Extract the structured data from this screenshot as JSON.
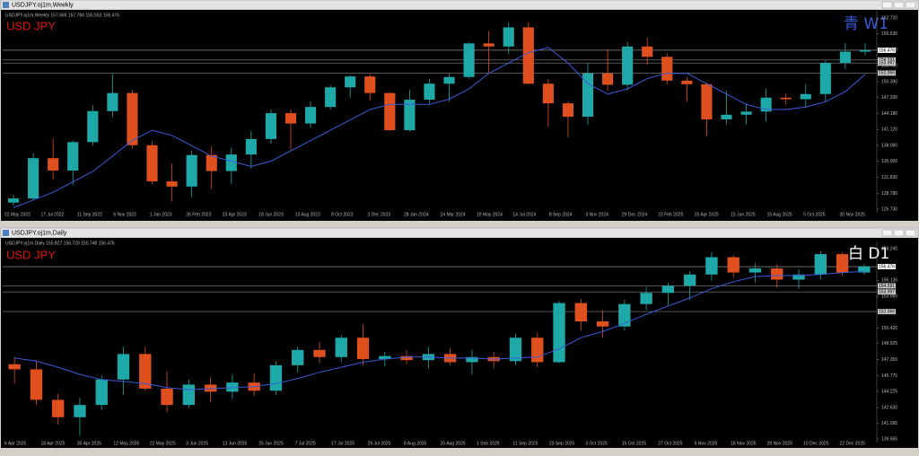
{
  "chart_data": [
    {
      "type": "candlestick",
      "window_title": "USDJPY.oj1m,Weekly",
      "info": "USDJPY.oj1m,Weekly  157.666 157.784 155.553 156.476",
      "symbol_label": "USD JPY",
      "timeframe_label": "青 W1",
      "timeframe_color": "#3a5bd9",
      "up_color": "#1fa8a8",
      "down_color": "#e0501e",
      "ma_color": "#3a5bd9",
      "x_tick_labels": [
        "22 May 2022",
        "17 Jul 2022",
        "11 Sep 2022",
        "6 Nov 2022",
        "1 Jan 2023",
        "26 Feb 2023",
        "23 Apr 2023",
        "18 Jun 2023",
        "13 Aug 2023",
        "8 Oct 2023",
        "3 Dec 2023",
        "28 Jan 2024",
        "24 Mar 2024",
        "19 May 2024",
        "14 Jul 2024",
        "8 Sep 2024",
        "3 Nov 2024",
        "29 Dec 2024",
        "23 Feb 2025",
        "20 Apr 2025",
        "15 Jun 2025",
        "10 Aug 2025",
        "5 Oct 2025",
        "30 Nov 2025"
      ],
      "ylim": [
        125.73,
        162.72
      ],
      "yticks": [
        {
          "value": 162.72,
          "label": "162.720"
        },
        {
          "value": 159.63,
          "label": "159.630"
        },
        {
          "value": 156.53,
          "label": "156.530"
        },
        {
          "value": 153.45,
          "label": "153.450"
        },
        {
          "value": 150.39,
          "label": "150.390"
        },
        {
          "value": 147.33,
          "label": "147.330"
        },
        {
          "value": 144.18,
          "label": "144.180"
        },
        {
          "value": 141.12,
          "label": "141.120"
        },
        {
          "value": 138.06,
          "label": "138.060"
        },
        {
          "value": 135.0,
          "label": "135.000"
        },
        {
          "value": 131.83,
          "label": "131.830"
        },
        {
          "value": 128.78,
          "label": "128.780"
        },
        {
          "value": 125.73,
          "label": "125.730"
        }
      ],
      "levels": [
        156.476,
        154.591,
        153.997,
        152.066
      ],
      "candles": [
        [
          127.0,
          128.5,
          126.4,
          127.8
        ],
        [
          127.8,
          136.5,
          127.5,
          135.6
        ],
        [
          135.6,
          139.3,
          131.5,
          133.2
        ],
        [
          133.2,
          139.0,
          130.4,
          138.7
        ],
        [
          138.7,
          145.9,
          138.0,
          144.7
        ],
        [
          144.7,
          151.9,
          143.5,
          148.2
        ],
        [
          148.2,
          148.8,
          137.5,
          138.1
        ],
        [
          138.1,
          138.9,
          130.6,
          131.1
        ],
        [
          131.1,
          134.5,
          127.2,
          130.1
        ],
        [
          130.1,
          137.1,
          128.1,
          136.2
        ],
        [
          136.2,
          137.9,
          129.6,
          133.1
        ],
        [
          133.1,
          137.6,
          130.6,
          136.3
        ],
        [
          136.3,
          140.9,
          133.5,
          139.3
        ],
        [
          139.3,
          145.0,
          138.4,
          144.3
        ],
        [
          144.3,
          145.0,
          137.2,
          142.3
        ],
        [
          142.3,
          146.6,
          141.5,
          145.5
        ],
        [
          145.5,
          149.7,
          145.0,
          149.3
        ],
        [
          149.3,
          151.7,
          147.3,
          151.4
        ],
        [
          151.4,
          151.9,
          146.7,
          148.2
        ],
        [
          148.2,
          148.3,
          140.9,
          141.0
        ],
        [
          141.0,
          148.8,
          140.8,
          146.9
        ],
        [
          146.9,
          150.9,
          146.1,
          150.0
        ],
        [
          150.0,
          151.9,
          146.5,
          151.3
        ],
        [
          151.3,
          158.0,
          151.0,
          157.8
        ],
        [
          157.8,
          160.2,
          151.9,
          157.2
        ],
        [
          157.2,
          161.9,
          155.7,
          160.9
        ],
        [
          160.9,
          161.9,
          149.9,
          150.0
        ],
        [
          150.0,
          150.9,
          141.7,
          146.2
        ],
        [
          146.2,
          146.5,
          139.6,
          143.6
        ],
        [
          143.6,
          153.9,
          142.0,
          152.0
        ],
        [
          152.0,
          156.7,
          148.6,
          149.8
        ],
        [
          149.8,
          158.1,
          148.7,
          157.2
        ],
        [
          157.2,
          158.9,
          153.7,
          155.2
        ],
        [
          155.2,
          155.9,
          149.9,
          150.6
        ],
        [
          150.6,
          151.3,
          146.5,
          149.9
        ],
        [
          149.9,
          150.2,
          139.9,
          143.1
        ],
        [
          143.1,
          148.6,
          142.1,
          144.0
        ],
        [
          144.0,
          146.2,
          142.1,
          144.6
        ],
        [
          144.6,
          149.0,
          142.7,
          147.3
        ],
        [
          147.3,
          148.2,
          145.9,
          147.0
        ],
        [
          147.0,
          149.9,
          145.4,
          148.0
        ],
        [
          148.0,
          154.5,
          146.6,
          154.0
        ],
        [
          154.0,
          157.9,
          152.8,
          156.2
        ],
        [
          156.2,
          157.8,
          155.5,
          156.5
        ]
      ],
      "ma": [
        126.0,
        127.5,
        129.0,
        131.0,
        133.0,
        136.0,
        139.0,
        141.0,
        140.0,
        138.0,
        136.0,
        135.0,
        134.0,
        135.0,
        137.0,
        139.0,
        141.0,
        143.0,
        145.0,
        146.0,
        146.0,
        146.0,
        147.0,
        149.0,
        152.0,
        154.0,
        156.0,
        157.0,
        154.0,
        150.0,
        148.0,
        149.0,
        151.0,
        152.0,
        152.0,
        150.0,
        148.0,
        146.0,
        145.0,
        145.0,
        145.5,
        146.5,
        148.5,
        151.8
      ]
    },
    {
      "type": "candlestick",
      "window_title": "USDJPY.oj1m,Daily",
      "info": "USDJPY.oj1m,Daily  155.827 156.729 155.748 156.476",
      "symbol_label": "USD JPY",
      "timeframe_label": "白 D1",
      "timeframe_color": "#ffffff",
      "up_color": "#1fa8a8",
      "down_color": "#e0501e",
      "ma_color": "#3a5bd9",
      "x_tick_labels": [
        "6 Apr 2025",
        "18 Apr 2025",
        "30 Apr 2025",
        "12 May 2025",
        "22 May 2025",
        "3 Jun 2025",
        "13 Jun 2025",
        "25 Jun 2025",
        "7 Jul 2025",
        "17 Jul 2025",
        "29 Jul 2025",
        "8 Aug 2025",
        "20 Aug 2025",
        "1 Sep 2025",
        "11 Sep 2025",
        "23 Sep 2025",
        "3 Oct 2025",
        "15 Oct 2025",
        "27 Oct 2025",
        "6 Nov 2025",
        "18 Nov 2025",
        "28 Nov 2025",
        "10 Dec 2025",
        "22 Dec 2025"
      ],
      "ylim": [
        139.565,
        158.24
      ],
      "yticks": [
        {
          "value": 158.24,
          "label": "158.240"
        },
        {
          "value": 155.135,
          "label": "155.135"
        },
        {
          "value": 153.56,
          "label": "153.560"
        },
        {
          "value": 150.42,
          "label": "150.420"
        },
        {
          "value": 148.925,
          "label": "148.925"
        },
        {
          "value": 147.35,
          "label": "147.350"
        },
        {
          "value": 145.775,
          "label": "145.775"
        },
        {
          "value": 144.225,
          "label": "144.225"
        },
        {
          "value": 142.63,
          "label": "142.630"
        },
        {
          "value": 141.095,
          "label": "141.095"
        },
        {
          "value": 139.565,
          "label": "139.565"
        }
      ],
      "levels": [
        156.476,
        154.591,
        153.997,
        152.066
      ],
      "candles": [
        [
          146.9,
          147.6,
          145.0,
          146.4
        ],
        [
          146.4,
          147.2,
          142.9,
          143.4
        ],
        [
          143.4,
          144.0,
          141.0,
          141.7
        ],
        [
          141.7,
          143.6,
          139.9,
          142.9
        ],
        [
          142.9,
          145.8,
          142.4,
          145.4
        ],
        [
          145.4,
          148.6,
          143.9,
          147.9
        ],
        [
          147.9,
          148.6,
          144.3,
          144.5
        ],
        [
          144.5,
          146.2,
          142.2,
          142.9
        ],
        [
          142.9,
          145.4,
          142.6,
          144.9
        ],
        [
          144.9,
          145.6,
          143.2,
          144.2
        ],
        [
          144.2,
          145.9,
          143.5,
          145.1
        ],
        [
          145.1,
          146.0,
          143.8,
          144.3
        ],
        [
          144.3,
          147.2,
          143.9,
          146.8
        ],
        [
          146.8,
          148.6,
          146.1,
          148.3
        ],
        [
          148.3,
          149.1,
          147.0,
          147.6
        ],
        [
          147.6,
          149.8,
          147.1,
          149.5
        ],
        [
          149.5,
          150.8,
          146.8,
          147.4
        ],
        [
          147.4,
          148.1,
          146.7,
          147.7
        ],
        [
          147.7,
          148.3,
          146.9,
          147.3
        ],
        [
          147.3,
          148.6,
          146.5,
          147.9
        ],
        [
          147.9,
          148.5,
          146.8,
          147.1
        ],
        [
          147.1,
          148.3,
          145.9,
          147.6
        ],
        [
          147.6,
          148.1,
          146.5,
          147.2
        ],
        [
          147.2,
          149.9,
          146.8,
          149.5
        ],
        [
          149.5,
          150.0,
          146.6,
          147.1
        ],
        [
          147.1,
          153.1,
          147.0,
          152.9
        ],
        [
          152.9,
          153.3,
          150.2,
          151.1
        ],
        [
          151.1,
          152.2,
          149.5,
          150.6
        ],
        [
          150.6,
          153.2,
          150.2,
          152.8
        ],
        [
          152.8,
          154.5,
          152.2,
          153.9
        ],
        [
          153.9,
          154.9,
          152.7,
          154.6
        ],
        [
          154.6,
          156.0,
          153.2,
          155.7
        ],
        [
          155.7,
          157.9,
          155.1,
          157.4
        ],
        [
          157.4,
          157.6,
          155.4,
          155.9
        ],
        [
          155.9,
          156.8,
          154.9,
          156.3
        ],
        [
          156.3,
          156.7,
          154.4,
          155.2
        ],
        [
          155.2,
          156.2,
          154.3,
          155.7
        ],
        [
          155.7,
          158.0,
          155.2,
          157.7
        ],
        [
          157.7,
          157.9,
          155.6,
          155.9
        ],
        [
          155.9,
          156.7,
          155.7,
          156.5
        ]
      ],
      "ma": [
        147.5,
        147.2,
        146.6,
        145.9,
        145.4,
        145.2,
        145.0,
        144.6,
        144.4,
        144.5,
        144.6,
        144.7,
        145.0,
        145.5,
        146.1,
        146.6,
        147.1,
        147.4,
        147.6,
        147.6,
        147.5,
        147.5,
        147.4,
        147.5,
        147.6,
        148.4,
        149.5,
        150.1,
        150.9,
        151.8,
        152.6,
        153.4,
        154.3,
        155.0,
        155.5,
        155.6,
        155.6,
        155.7,
        155.9,
        156.0
      ]
    }
  ]
}
